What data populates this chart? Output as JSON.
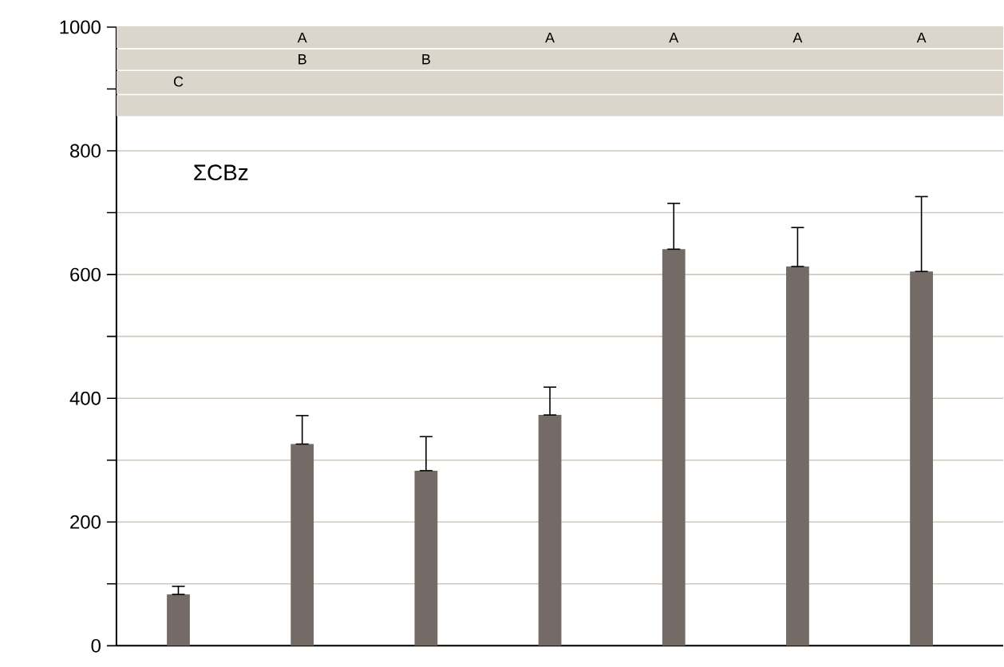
{
  "chart_data": {
    "type": "bar",
    "categories": [
      null,
      null,
      null,
      null,
      null,
      null,
      null
    ],
    "values": [
      83,
      326,
      283,
      373,
      641,
      613,
      605
    ],
    "errors": [
      [
        83,
        96
      ],
      [
        326,
        372
      ],
      [
        283,
        338
      ],
      [
        373,
        418
      ],
      [
        641,
        715
      ],
      [
        613,
        676
      ],
      [
        605,
        726
      ]
    ],
    "color": "#756b66",
    "ylim": [
      0,
      1000
    ],
    "yticks": [
      0,
      {
        "value": 100,
        "label": null
      },
      200,
      {
        "value": 300,
        "label": null
      },
      400,
      {
        "value": 500,
        "label": null
      },
      600,
      {
        "value": 700,
        "label": null
      },
      800,
      {
        "value": 900,
        "label": null
      },
      1000
    ],
    "grid": "y",
    "tick_labels": "y",
    "bands": [
      {
        "axis": "y",
        "from": 966,
        "to": 1000,
        "color": "#dcd5cb"
      },
      {
        "axis": "y",
        "from": 931,
        "to": 964,
        "color": "#dcd5cb"
      },
      {
        "axis": "y",
        "from": 892,
        "to": 929,
        "color": "#dcd5cb"
      },
      {
        "axis": "y",
        "from": 856,
        "to": 890,
        "color": "#dcd5cb"
      }
    ],
    "annotations": [
      "ΣCBz",
      "C",
      "A",
      "B",
      "B",
      "A",
      "A",
      "A",
      "A"
    ]
  }
}
